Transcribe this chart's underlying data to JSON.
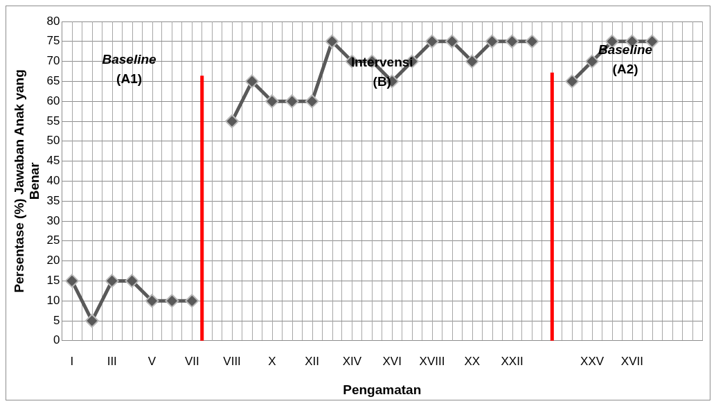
{
  "chart_data": {
    "type": "line",
    "xlabel": "Pengamatan",
    "ylabel": "Persentase (%) Jawaban Anak yang Benar",
    "categories": [
      "I",
      null,
      "III",
      null,
      "V",
      null,
      "VII",
      null,
      "VIII",
      null,
      "X",
      null,
      "XII",
      null,
      "XIV",
      null,
      "XVI",
      null,
      "XVIII",
      null,
      "XX",
      null,
      "XXII",
      null,
      null,
      null,
      "XXV",
      null,
      "XVII",
      null,
      null,
      null
    ],
    "series": [
      {
        "color": "#595959",
        "values": [
          15,
          5,
          15,
          15,
          10,
          10,
          10,
          null,
          55,
          65,
          60,
          60,
          60,
          75,
          70,
          70,
          65,
          70,
          75,
          75,
          70,
          75,
          75,
          75,
          null,
          65,
          70,
          75,
          75,
          75,
          null,
          null
        ]
      }
    ],
    "ylim": [
      0,
      80
    ],
    "yticks": [
      0,
      5,
      10,
      15,
      20,
      25,
      30,
      35,
      40,
      45,
      50,
      55,
      60,
      65,
      70,
      75,
      80
    ],
    "grid": true,
    "marker": "diamond",
    "line_style": "solid",
    "annotations": [
      "Baseline (A1)",
      "Intervensi (B)",
      "Baseline (A2)"
    ]
  }
}
